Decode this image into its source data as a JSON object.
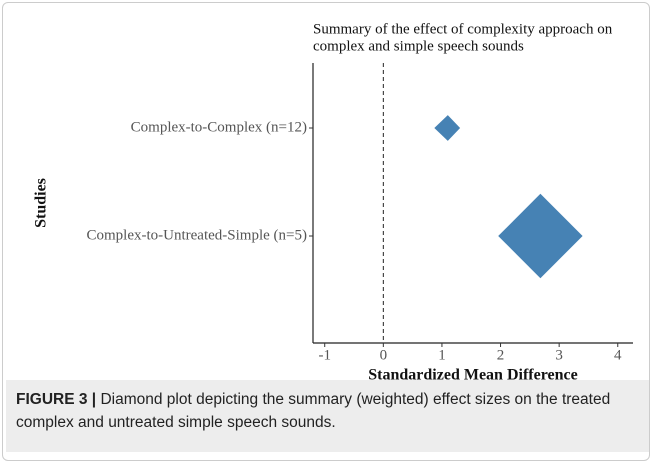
{
  "chart_data": {
    "type": "diamond",
    "title": [
      "Summary of the effect of complexity approach on",
      "complex and simple speech sounds"
    ],
    "x_label": "Standardized Mean Difference",
    "y_label": "Studies",
    "categories": [
      "Complex-to-Complex (n=12)",
      "Complex-to-Untreated-Simple (n=5)"
    ],
    "values": [
      1.1,
      2.68
    ],
    "ci_lower": [
      0.87,
      1.96
    ],
    "ci_upper": [
      1.31,
      3.4
    ],
    "color": "#4682b4",
    "reference_line": 0,
    "xlim": [
      -1.2,
      4.26
    ],
    "xticks": [
      -1,
      0,
      1,
      2,
      3,
      4
    ]
  },
  "caption": {
    "label": "FIGURE 3 |",
    "text": "Diamond plot depicting the summary (weighted) effect sizes on the treated complex and untreated simple speech sounds."
  }
}
